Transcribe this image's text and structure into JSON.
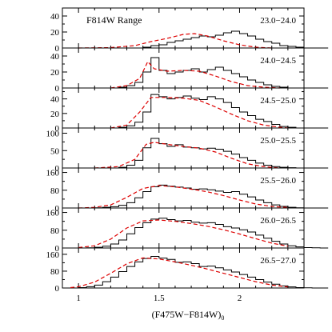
{
  "chart_data": {
    "type": "histogram",
    "header": "F814W Range",
    "xlabel_main": "(F475W−F814W)",
    "xlabel_sub": "0",
    "x_range": [
      0.9,
      2.4
    ],
    "x_ticks": [
      1,
      1.5,
      2
    ],
    "x_tick_labels": [
      "1",
      "1.5",
      "2"
    ],
    "bin_start": 1.0,
    "bin_width": 0.05,
    "line_colors": {
      "histogram": "#000000",
      "fit": "#dd0000"
    },
    "panels": [
      {
        "range": "23.0−24.0",
        "ylim": [
          0,
          50
        ],
        "yticks": [
          0,
          20,
          40
        ],
        "counts": [
          0,
          0,
          0,
          0,
          0,
          0,
          0,
          0,
          1,
          3,
          4,
          7,
          9,
          11,
          13,
          15,
          14,
          16,
          19,
          21,
          18,
          15,
          11,
          8,
          6,
          3,
          2,
          1,
          0,
          0,
          0
        ],
        "fit": [
          [
            1.0,
            0
          ],
          [
            1.2,
            0.5
          ],
          [
            1.35,
            3
          ],
          [
            1.45,
            8
          ],
          [
            1.55,
            12
          ],
          [
            1.65,
            17
          ],
          [
            1.72,
            18
          ],
          [
            1.8,
            15
          ],
          [
            1.9,
            9
          ],
          [
            2.0,
            4
          ],
          [
            2.1,
            1
          ],
          [
            2.2,
            0
          ]
        ]
      },
      {
        "range": "24.0−24.5",
        "ylim": [
          0,
          50
        ],
        "yticks": [
          0,
          20,
          40
        ],
        "counts": [
          0,
          0,
          0,
          0,
          0,
          1,
          3,
          7,
          20,
          38,
          22,
          18,
          20,
          22,
          24,
          20,
          23,
          26,
          22,
          18,
          14,
          10,
          7,
          4,
          2,
          1,
          0,
          0,
          0,
          0,
          0
        ],
        "fit": [
          [
            1.2,
            0
          ],
          [
            1.3,
            3
          ],
          [
            1.38,
            12
          ],
          [
            1.43,
            33
          ],
          [
            1.47,
            24
          ],
          [
            1.55,
            21
          ],
          [
            1.65,
            22
          ],
          [
            1.75,
            21
          ],
          [
            1.85,
            15
          ],
          [
            1.95,
            8
          ],
          [
            2.05,
            3
          ],
          [
            2.15,
            1
          ],
          [
            2.25,
            0
          ]
        ]
      },
      {
        "range": "24.5−25.0",
        "ylim": [
          0,
          55
        ],
        "yticks": [
          0,
          20,
          40
        ],
        "counts": [
          0,
          0,
          0,
          0,
          0,
          1,
          3,
          8,
          22,
          46,
          43,
          40,
          42,
          44,
          41,
          39,
          43,
          40,
          35,
          28,
          22,
          17,
          12,
          9,
          5,
          2,
          1,
          0,
          0,
          0,
          0
        ],
        "fit": [
          [
            1.2,
            0
          ],
          [
            1.3,
            4
          ],
          [
            1.38,
            22
          ],
          [
            1.45,
            42
          ],
          [
            1.55,
            42
          ],
          [
            1.65,
            41
          ],
          [
            1.75,
            38
          ],
          [
            1.85,
            29
          ],
          [
            1.95,
            19
          ],
          [
            2.05,
            10
          ],
          [
            2.15,
            4
          ],
          [
            2.25,
            1
          ],
          [
            2.3,
            0
          ]
        ]
      },
      {
        "range": "25.0−25.5",
        "ylim": [
          0,
          115
        ],
        "yticks": [
          0,
          50,
          100
        ],
        "counts": [
          0,
          0,
          0,
          0,
          0,
          2,
          8,
          22,
          58,
          85,
          70,
          62,
          67,
          60,
          58,
          55,
          57,
          54,
          48,
          40,
          30,
          22,
          14,
          8,
          4,
          2,
          1,
          0,
          0,
          0,
          0
        ],
        "fit": [
          [
            1.1,
            0
          ],
          [
            1.25,
            4
          ],
          [
            1.35,
            25
          ],
          [
            1.42,
            68
          ],
          [
            1.47,
            74
          ],
          [
            1.55,
            68
          ],
          [
            1.65,
            62
          ],
          [
            1.75,
            57
          ],
          [
            1.85,
            46
          ],
          [
            1.95,
            28
          ],
          [
            2.05,
            12
          ],
          [
            2.15,
            4
          ],
          [
            2.25,
            0
          ]
        ]
      },
      {
        "range": "25.5−26.0",
        "ylim": [
          0,
          180
        ],
        "yticks": [
          0,
          80,
          160
        ],
        "counts": [
          0,
          0,
          1,
          3,
          6,
          12,
          24,
          46,
          74,
          96,
          103,
          98,
          94,
          90,
          84,
          86,
          82,
          76,
          70,
          74,
          62,
          50,
          36,
          24,
          14,
          7,
          3,
          1,
          0,
          0,
          0
        ],
        "fit": [
          [
            1.0,
            0
          ],
          [
            1.1,
            3
          ],
          [
            1.2,
            14
          ],
          [
            1.3,
            48
          ],
          [
            1.4,
            88
          ],
          [
            1.5,
            101
          ],
          [
            1.6,
            95
          ],
          [
            1.7,
            85
          ],
          [
            1.8,
            73
          ],
          [
            1.9,
            56
          ],
          [
            2.0,
            36
          ],
          [
            2.1,
            18
          ],
          [
            2.2,
            7
          ],
          [
            2.3,
            2
          ]
        ]
      },
      {
        "range": "26.0−26.5",
        "ylim": [
          0,
          180
        ],
        "yticks": [
          0,
          80,
          160
        ],
        "counts": [
          0,
          1,
          3,
          8,
          18,
          36,
          64,
          92,
          114,
          130,
          134,
          128,
          122,
          124,
          116,
          112,
          114,
          106,
          96,
          90,
          82,
          72,
          58,
          44,
          30,
          18,
          10,
          5,
          2,
          1,
          0
        ],
        "fit": [
          [
            1.0,
            2
          ],
          [
            1.1,
            10
          ],
          [
            1.2,
            40
          ],
          [
            1.3,
            90
          ],
          [
            1.4,
            122
          ],
          [
            1.5,
            126
          ],
          [
            1.6,
            120
          ],
          [
            1.7,
            110
          ],
          [
            1.8,
            98
          ],
          [
            1.9,
            82
          ],
          [
            2.0,
            63
          ],
          [
            2.1,
            42
          ],
          [
            2.2,
            22
          ],
          [
            2.3,
            8
          ]
        ]
      },
      {
        "range": "26.5−27.0",
        "ylim": [
          0,
          190
        ],
        "yticks": [
          0,
          80,
          160
        ],
        "counts": [
          2,
          6,
          14,
          30,
          52,
          78,
          102,
          124,
          140,
          150,
          142,
          136,
          122,
          124,
          116,
          102,
          104,
          96,
          86,
          76,
          64,
          52,
          40,
          28,
          18,
          10,
          5,
          2,
          1,
          0,
          0
        ],
        "fit": [
          [
            0.95,
            2
          ],
          [
            1.0,
            6
          ],
          [
            1.1,
            28
          ],
          [
            1.2,
            70
          ],
          [
            1.3,
            115
          ],
          [
            1.4,
            143
          ],
          [
            1.5,
            138
          ],
          [
            1.6,
            124
          ],
          [
            1.7,
            108
          ],
          [
            1.8,
            90
          ],
          [
            1.9,
            70
          ],
          [
            2.0,
            50
          ],
          [
            2.1,
            30
          ],
          [
            2.2,
            14
          ],
          [
            2.3,
            5
          ]
        ]
      }
    ]
  }
}
